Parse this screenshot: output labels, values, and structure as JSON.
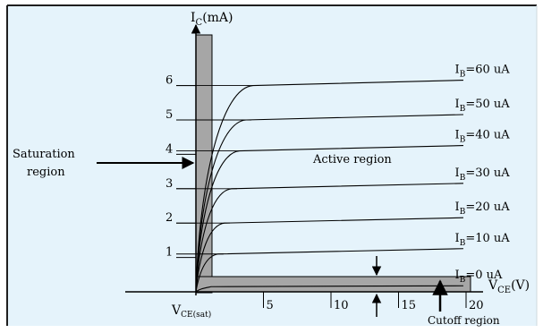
{
  "colors": {
    "background": "#e5f3fb",
    "curve": "#000000",
    "region_fill": "#a6a6a6",
    "frame": "#1f1f1f"
  },
  "axes": {
    "y_label_main": "I",
    "y_label_sub": "C",
    "y_label_unit": "(mA)",
    "x_label_main": "V",
    "x_label_sub": "CE",
    "x_label_unit": "(V)",
    "origin_main": "V",
    "origin_sub": "CE(sat)",
    "y_ticks": [
      "1",
      "2",
      "3",
      "4",
      "5",
      "6"
    ],
    "x_ticks": [
      "5",
      "10",
      "15",
      "20"
    ]
  },
  "curves": [
    {
      "prefix": "I",
      "sub": "B",
      "value": "=60 uA",
      "level": 6.0
    },
    {
      "prefix": "I",
      "sub": "B",
      "value": "=50 uA",
      "level": 5.0
    },
    {
      "prefix": "I",
      "sub": "B",
      "value": "=40 uA",
      "level": 4.1
    },
    {
      "prefix": "I",
      "sub": "B",
      "value": "=30 uA",
      "level": 3.0
    },
    {
      "prefix": "I",
      "sub": "B",
      "value": "=20 uA",
      "level": 2.0
    },
    {
      "prefix": "I",
      "sub": "B",
      "value": "=10 uA",
      "level": 1.1
    },
    {
      "prefix": "I",
      "sub": "B",
      "value": "=0 uA",
      "level": 0.15
    }
  ],
  "regions": {
    "saturation_line1": "Saturation",
    "saturation_line2": "region",
    "active": "Active region",
    "cutoff": "Cutoff region"
  }
}
